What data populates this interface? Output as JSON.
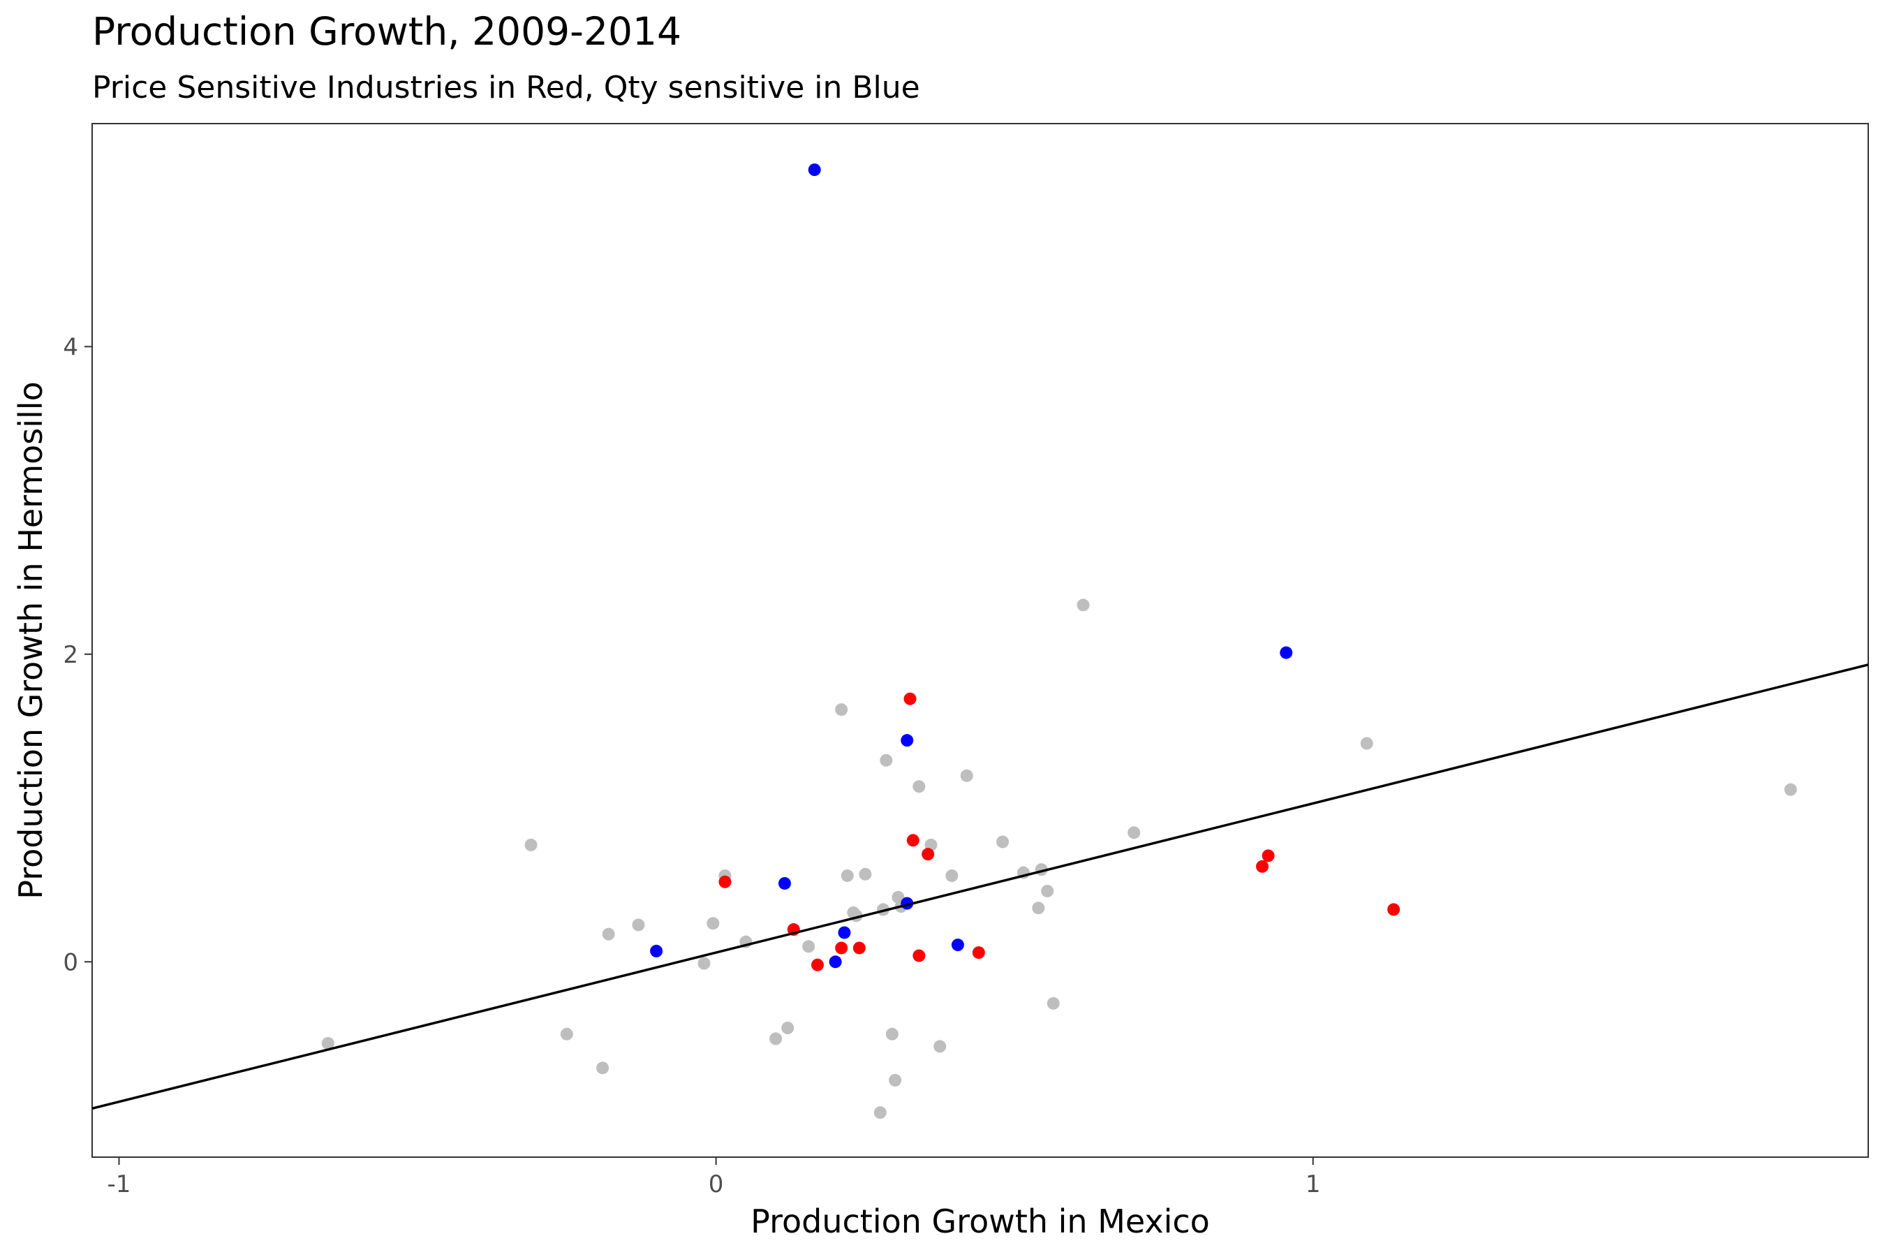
{
  "chart_data": {
    "type": "scatter",
    "title": "Production Growth, 2009-2014",
    "subtitle": "Price Sensitive Industries in Red, Qty sensitive in Blue",
    "xlabel": "Production Growth in Mexico",
    "ylabel": "Production Growth in Hermosillo",
    "xlim": [
      -1.045,
      1.93
    ],
    "ylim": [
      -1.27,
      5.45
    ],
    "x_ticks": [
      -1,
      0,
      1
    ],
    "x_tick_labels": [
      "-1",
      "0",
      "1"
    ],
    "y_ticks": [
      0,
      2,
      4
    ],
    "y_tick_labels": [
      "0",
      "2",
      "4"
    ],
    "grid": false,
    "colors": {
      "other": "#bebebe",
      "price": "#ff0000",
      "qty": "#0000ff",
      "line": "#000000"
    },
    "fit_line": {
      "intercept": 0.06,
      "slope": 0.97
    },
    "series": [
      {
        "group": "other",
        "color": "#bebebe",
        "points": [
          [
            -0.65,
            -0.53
          ],
          [
            -0.31,
            0.76
          ],
          [
            -0.25,
            -0.47
          ],
          [
            -0.19,
            -0.69
          ],
          [
            -0.18,
            0.18
          ],
          [
            -0.13,
            0.24
          ],
          [
            -0.02,
            -0.01
          ],
          [
            -0.005,
            0.25
          ],
          [
            0.015,
            0.56
          ],
          [
            0.05,
            0.13
          ],
          [
            0.1,
            -0.5
          ],
          [
            0.12,
            -0.43
          ],
          [
            0.155,
            0.1
          ],
          [
            0.21,
            1.64
          ],
          [
            0.22,
            0.56
          ],
          [
            0.23,
            0.32
          ],
          [
            0.235,
            0.3
          ],
          [
            0.25,
            0.57
          ],
          [
            0.275,
            -0.98
          ],
          [
            0.28,
            0.34
          ],
          [
            0.285,
            1.31
          ],
          [
            0.295,
            -0.47
          ],
          [
            0.3,
            -0.77
          ],
          [
            0.305,
            0.42
          ],
          [
            0.31,
            0.36
          ],
          [
            0.34,
            1.14
          ],
          [
            0.375,
            -0.55
          ],
          [
            0.36,
            0.76
          ],
          [
            0.395,
            0.56
          ],
          [
            0.42,
            1.21
          ],
          [
            0.48,
            0.78
          ],
          [
            0.515,
            0.58
          ],
          [
            0.54,
            0.35
          ],
          [
            0.545,
            0.6
          ],
          [
            0.555,
            0.46
          ],
          [
            0.565,
            -0.27
          ],
          [
            0.615,
            2.32
          ],
          [
            0.7,
            0.84
          ],
          [
            1.09,
            1.42
          ],
          [
            1.8,
            1.12
          ]
        ]
      },
      {
        "group": "price",
        "color": "#ff0000",
        "points": [
          [
            0.015,
            0.52
          ],
          [
            0.13,
            0.21
          ],
          [
            0.17,
            -0.02
          ],
          [
            0.21,
            0.09
          ],
          [
            0.24,
            0.09
          ],
          [
            0.325,
            1.71
          ],
          [
            0.33,
            0.79
          ],
          [
            0.34,
            0.04
          ],
          [
            0.355,
            0.7
          ],
          [
            0.44,
            0.06
          ],
          [
            0.915,
            0.62
          ],
          [
            0.925,
            0.69
          ],
          [
            1.135,
            0.34
          ]
        ]
      },
      {
        "group": "qty",
        "color": "#0000ff",
        "points": [
          [
            -0.1,
            0.07
          ],
          [
            0.115,
            0.51
          ],
          [
            0.165,
            5.15
          ],
          [
            0.2,
            0.0
          ],
          [
            0.215,
            0.19
          ],
          [
            0.32,
            1.44
          ],
          [
            0.32,
            0.38
          ],
          [
            0.405,
            0.11
          ],
          [
            0.955,
            2.01
          ]
        ]
      }
    ]
  }
}
